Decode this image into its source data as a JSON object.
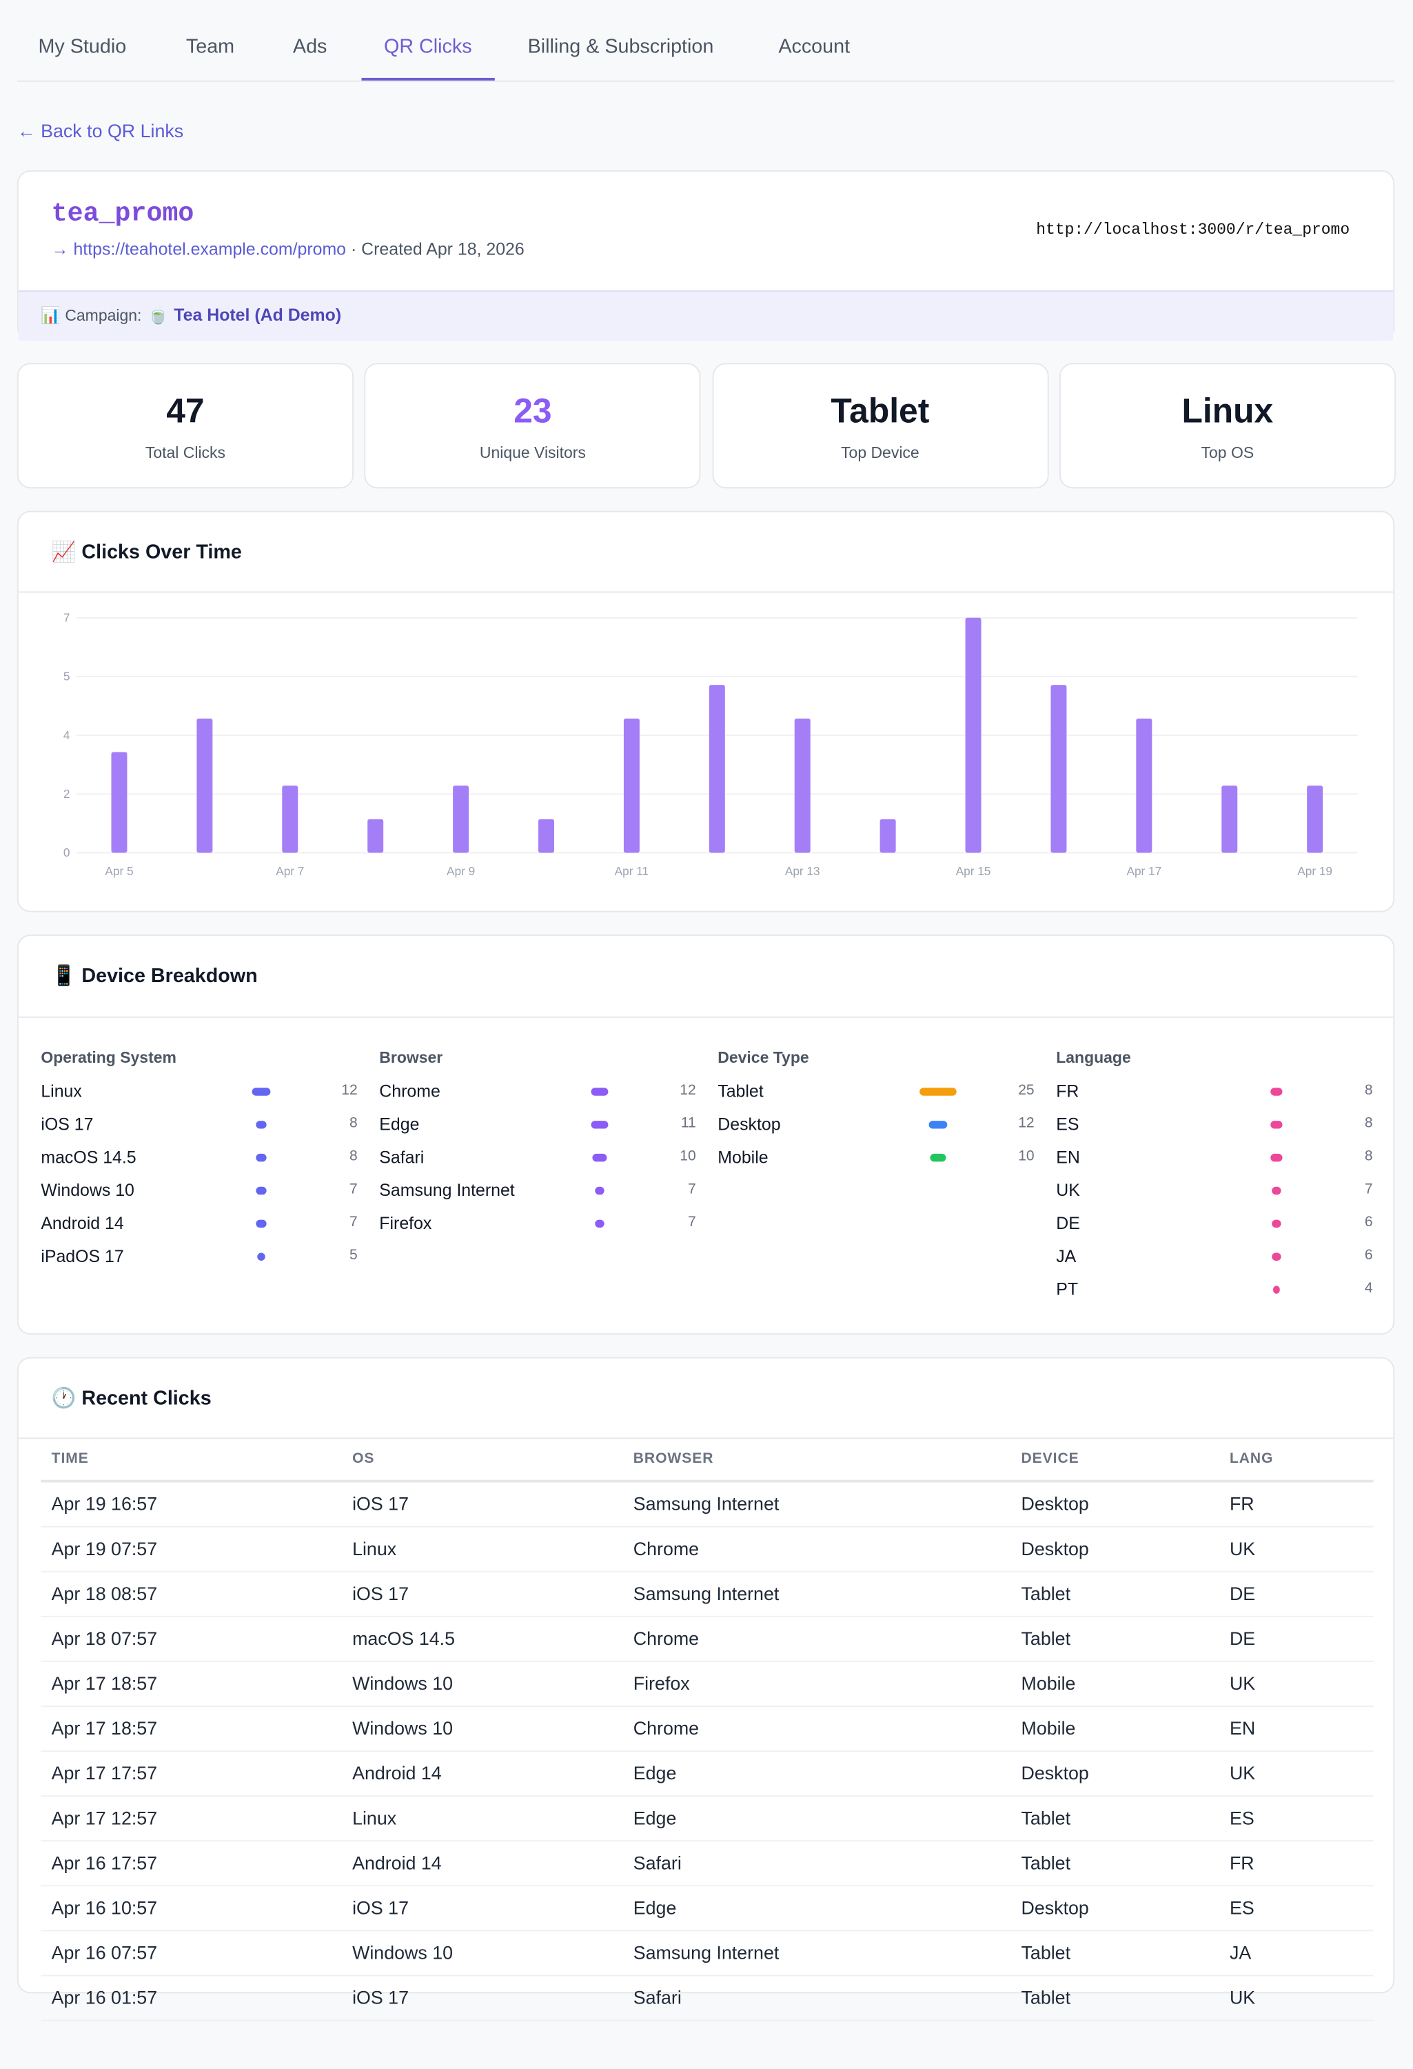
{
  "tabs": [
    "My Studio",
    "Team",
    "Ads",
    "QR Clicks",
    "Billing & Subscription",
    "Account"
  ],
  "active_tab": 3,
  "back_link": "← Back to QR Links",
  "link": {
    "name": "tea_promo",
    "destination": "→ https://teahotel.example.com/promo",
    "created": "· Created Apr 18, 2026",
    "short_url": "http://localhost:3000/r/tea_promo",
    "campaign_label": "📊 Campaign:",
    "campaign": "🍵 Tea Hotel (Ad Demo)"
  },
  "stats": [
    {
      "value": 47,
      "label": "Total Clicks"
    },
    {
      "value": 23,
      "label": "Unique Visitors"
    },
    {
      "value": "Tablet",
      "label": "Top Device"
    },
    {
      "value": "Linux",
      "label": "Top OS"
    }
  ],
  "chart_data": {
    "type": "bar",
    "title": "📈 Clicks Over Time",
    "categories": [
      "Apr 5",
      null,
      "Apr 7",
      null,
      "Apr 9",
      null,
      "Apr 11",
      null,
      "Apr 13",
      null,
      "Apr 15",
      null,
      "Apr 17",
      null,
      "Apr 19"
    ],
    "values": [
      3,
      4,
      2,
      1,
      2,
      1,
      4,
      5,
      4,
      1,
      7,
      5,
      4,
      2,
      2
    ],
    "color": "#a47ef6",
    "ylim": [
      0,
      7
    ],
    "yticks": [
      0,
      {
        "value": 1.75,
        "label": "2"
      },
      {
        "value": 3.5,
        "label": "4"
      },
      {
        "value": 5.25,
        "label": "5"
      },
      7
    ],
    "grid": true
  },
  "breakdown": {
    "title": "📱 Device Breakdown",
    "groups": [
      {
        "name": "Operating System",
        "color": "#6366f1",
        "items": [
          {
            "label": "Linux",
            "value": 12
          },
          {
            "label": "iOS 17",
            "value": 8
          },
          {
            "label": "macOS 14.5",
            "value": 8
          },
          {
            "label": "Windows 10",
            "value": 7
          },
          {
            "label": "Android 14",
            "value": 7
          },
          {
            "label": "iPadOS 17",
            "value": 5
          }
        ]
      },
      {
        "name": "Browser",
        "color": "#8b5cf6",
        "items": [
          {
            "label": "Chrome",
            "value": 12
          },
          {
            "label": "Edge",
            "value": 11
          },
          {
            "label": "Safari",
            "value": 10
          },
          {
            "label": "Samsung Internet",
            "value": 7
          },
          {
            "label": "Firefox",
            "value": 7
          }
        ]
      },
      {
        "name": "Device Type",
        "colors": [
          "#f59e0b",
          "#3b82f6",
          "#22c55e"
        ],
        "items": [
          {
            "label": "Tablet",
            "value": 25
          },
          {
            "label": "Desktop",
            "value": 12
          },
          {
            "label": "Mobile",
            "value": 10
          }
        ]
      },
      {
        "name": "Language",
        "color": "#ec4899",
        "items": [
          {
            "label": "FR",
            "value": 8
          },
          {
            "label": "ES",
            "value": 8
          },
          {
            "label": "EN",
            "value": 8
          },
          {
            "label": "UK",
            "value": 7
          },
          {
            "label": "DE",
            "value": 6
          },
          {
            "label": "JA",
            "value": 6
          },
          {
            "label": "PT",
            "value": 4
          }
        ]
      }
    ]
  },
  "recent": {
    "title": "🕐 Recent Clicks",
    "columns": [
      "TIME",
      "OS",
      "BROWSER",
      "DEVICE",
      "LANG"
    ],
    "rows": [
      [
        "Apr 19 16:57",
        "iOS 17",
        "Samsung Internet",
        "Desktop",
        "FR"
      ],
      [
        "Apr 19 07:57",
        "Linux",
        "Chrome",
        "Desktop",
        "UK"
      ],
      [
        "Apr 18 08:57",
        "iOS 17",
        "Samsung Internet",
        "Tablet",
        "DE"
      ],
      [
        "Apr 18 07:57",
        "macOS 14.5",
        "Chrome",
        "Tablet",
        "DE"
      ],
      [
        "Apr 17 18:57",
        "Windows 10",
        "Firefox",
        "Mobile",
        "UK"
      ],
      [
        "Apr 17 18:57",
        "Windows 10",
        "Chrome",
        "Mobile",
        "EN"
      ],
      [
        "Apr 17 17:57",
        "Android 14",
        "Edge",
        "Desktop",
        "UK"
      ],
      [
        "Apr 17 12:57",
        "Linux",
        "Edge",
        "Tablet",
        "ES"
      ],
      [
        "Apr 16 17:57",
        "Android 14",
        "Safari",
        "Tablet",
        "FR"
      ],
      [
        "Apr 16 10:57",
        "iOS 17",
        "Edge",
        "Desktop",
        "ES"
      ],
      [
        "Apr 16 07:57",
        "Windows 10",
        "Samsung Internet",
        "Tablet",
        "JA"
      ],
      [
        "Apr 16 01:57",
        "iOS 17",
        "Safari",
        "Tablet",
        "UK"
      ]
    ]
  }
}
